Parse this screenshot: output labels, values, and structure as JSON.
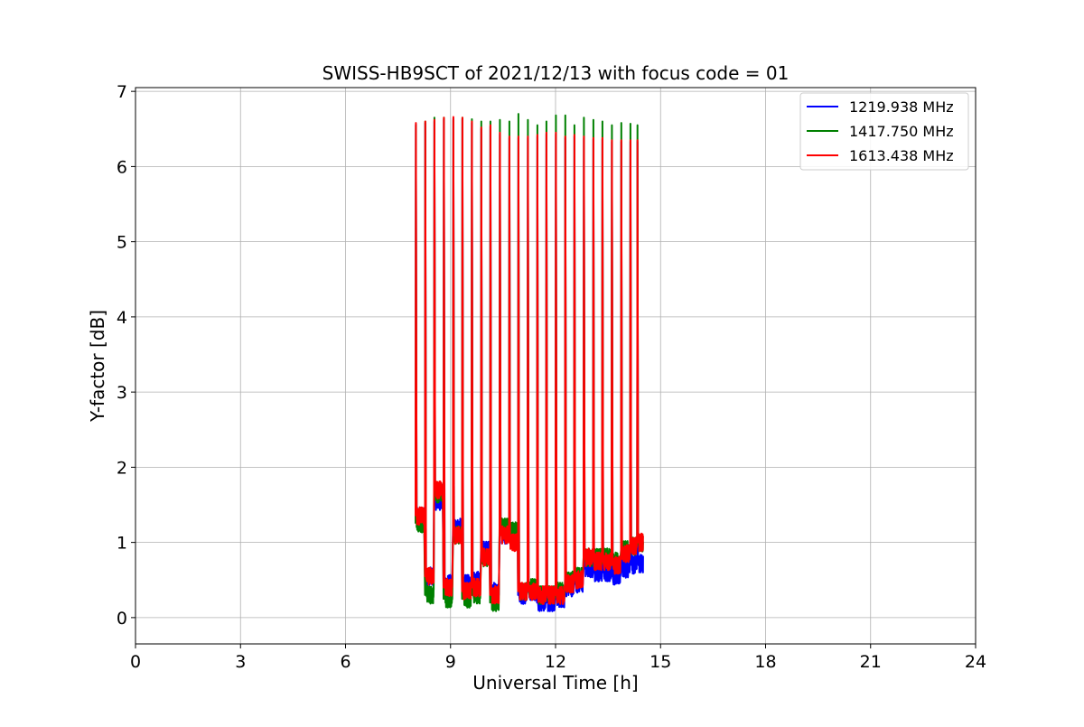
{
  "chart_data": {
    "type": "line",
    "title": "SWISS-HB9SCT of 2021/12/13 with focus code = 01",
    "xlabel": "Universal Time [h]",
    "ylabel": "Y-factor [dB]",
    "xlim": [
      0,
      24
    ],
    "ylim": [
      -0.35,
      7.05
    ],
    "xticks": [
      0,
      3,
      6,
      9,
      12,
      15,
      18,
      21,
      24
    ],
    "yticks": [
      0,
      1,
      2,
      3,
      4,
      5,
      6,
      7
    ],
    "xtick_labels": [
      "0",
      "3",
      "6",
      "9",
      "12",
      "15",
      "18",
      "21",
      "24"
    ],
    "ytick_labels": [
      "0",
      "1",
      "2",
      "3",
      "4",
      "5",
      "6",
      "7"
    ],
    "grid": true,
    "legend_position": "top-right",
    "series": [
      {
        "name": "1219.938 MHz",
        "color": "#0000ff"
      },
      {
        "name": "1417.750 MHz",
        "color": "#008000"
      },
      {
        "name": "1613.438 MHz",
        "color": "#ff0000"
      }
    ],
    "calibration_spikes": {
      "times": [
        8.0,
        8.27,
        8.53,
        8.8,
        9.07,
        9.33,
        9.6,
        9.87,
        10.13,
        10.4,
        10.67,
        10.93,
        11.2,
        11.47,
        11.73,
        12.0,
        12.27,
        12.53,
        12.8,
        13.07,
        13.33,
        13.6,
        13.87,
        14.13,
        14.33
      ],
      "peak_green": [
        6.55,
        6.6,
        6.65,
        6.65,
        6.62,
        6.65,
        6.63,
        6.6,
        6.6,
        6.62,
        6.6,
        6.7,
        6.62,
        6.55,
        6.6,
        6.68,
        6.68,
        6.55,
        6.65,
        6.62,
        6.6,
        6.55,
        6.58,
        6.57,
        6.55
      ],
      "peak_red": [
        6.58,
        6.6,
        6.62,
        6.65,
        6.66,
        6.65,
        6.6,
        6.52,
        6.55,
        6.45,
        6.4,
        6.4,
        6.4,
        6.42,
        6.45,
        6.45,
        6.4,
        6.42,
        6.4,
        6.38,
        6.38,
        6.35,
        6.35,
        6.35,
        6.35
      ]
    },
    "baseline_segments": [
      {
        "t0": 8.0,
        "t1": 8.25,
        "blue": 1.35,
        "green": 1.25,
        "red": 1.35
      },
      {
        "t0": 8.28,
        "t1": 8.52,
        "blue": 0.55,
        "green": 0.3,
        "red": 0.55
      },
      {
        "t0": 8.55,
        "t1": 8.78,
        "blue": 1.55,
        "green": 1.65,
        "red": 1.7
      },
      {
        "t0": 8.82,
        "t1": 9.05,
        "blue": 0.45,
        "green": 0.25,
        "red": 0.4
      },
      {
        "t0": 9.08,
        "t1": 9.32,
        "blue": 1.2,
        "green": 1.1,
        "red": 1.1
      },
      {
        "t0": 9.35,
        "t1": 9.58,
        "blue": 0.45,
        "green": 0.25,
        "red": 0.35
      },
      {
        "t0": 9.62,
        "t1": 9.85,
        "blue": 0.5,
        "green": 0.3,
        "red": 0.4
      },
      {
        "t0": 9.88,
        "t1": 10.12,
        "blue": 0.9,
        "green": 0.8,
        "red": 0.8
      },
      {
        "t0": 10.15,
        "t1": 10.38,
        "blue": 0.35,
        "green": 0.2,
        "red": 0.3
      },
      {
        "t0": 10.42,
        "t1": 10.65,
        "blue": 1.1,
        "green": 1.2,
        "red": 1.1
      },
      {
        "t0": 10.68,
        "t1": 10.92,
        "blue": 1.05,
        "green": 1.15,
        "red": 1.0
      },
      {
        "t0": 10.95,
        "t1": 11.18,
        "blue": 0.3,
        "green": 0.35,
        "red": 0.35
      },
      {
        "t0": 11.22,
        "t1": 11.45,
        "blue": 0.35,
        "green": 0.4,
        "red": 0.35
      },
      {
        "t0": 11.48,
        "t1": 11.72,
        "blue": 0.2,
        "green": 0.3,
        "red": 0.3
      },
      {
        "t0": 11.75,
        "t1": 11.98,
        "blue": 0.2,
        "green": 0.3,
        "red": 0.3
      },
      {
        "t0": 12.02,
        "t1": 12.25,
        "blue": 0.25,
        "green": 0.35,
        "red": 0.3
      },
      {
        "t0": 12.28,
        "t1": 12.52,
        "blue": 0.4,
        "green": 0.5,
        "red": 0.45
      },
      {
        "t0": 12.55,
        "t1": 12.78,
        "blue": 0.45,
        "green": 0.55,
        "red": 0.5
      },
      {
        "t0": 12.82,
        "t1": 13.05,
        "blue": 0.65,
        "green": 0.8,
        "red": 0.8
      },
      {
        "t0": 13.08,
        "t1": 13.32,
        "blue": 0.6,
        "green": 0.8,
        "red": 0.75
      },
      {
        "t0": 13.35,
        "t1": 13.58,
        "blue": 0.6,
        "green": 0.8,
        "red": 0.75
      },
      {
        "t0": 13.62,
        "t1": 13.85,
        "blue": 0.55,
        "green": 0.75,
        "red": 0.7
      },
      {
        "t0": 13.88,
        "t1": 14.12,
        "blue": 0.65,
        "green": 0.9,
        "red": 0.85
      },
      {
        "t0": 14.15,
        "t1": 14.32,
        "blue": 0.7,
        "green": 0.95,
        "red": 0.95
      },
      {
        "t0": 14.35,
        "t1": 14.5,
        "blue": 0.72,
        "green": 1.0,
        "red": 1.0
      }
    ],
    "noise_amplitude_db": 0.12
  }
}
